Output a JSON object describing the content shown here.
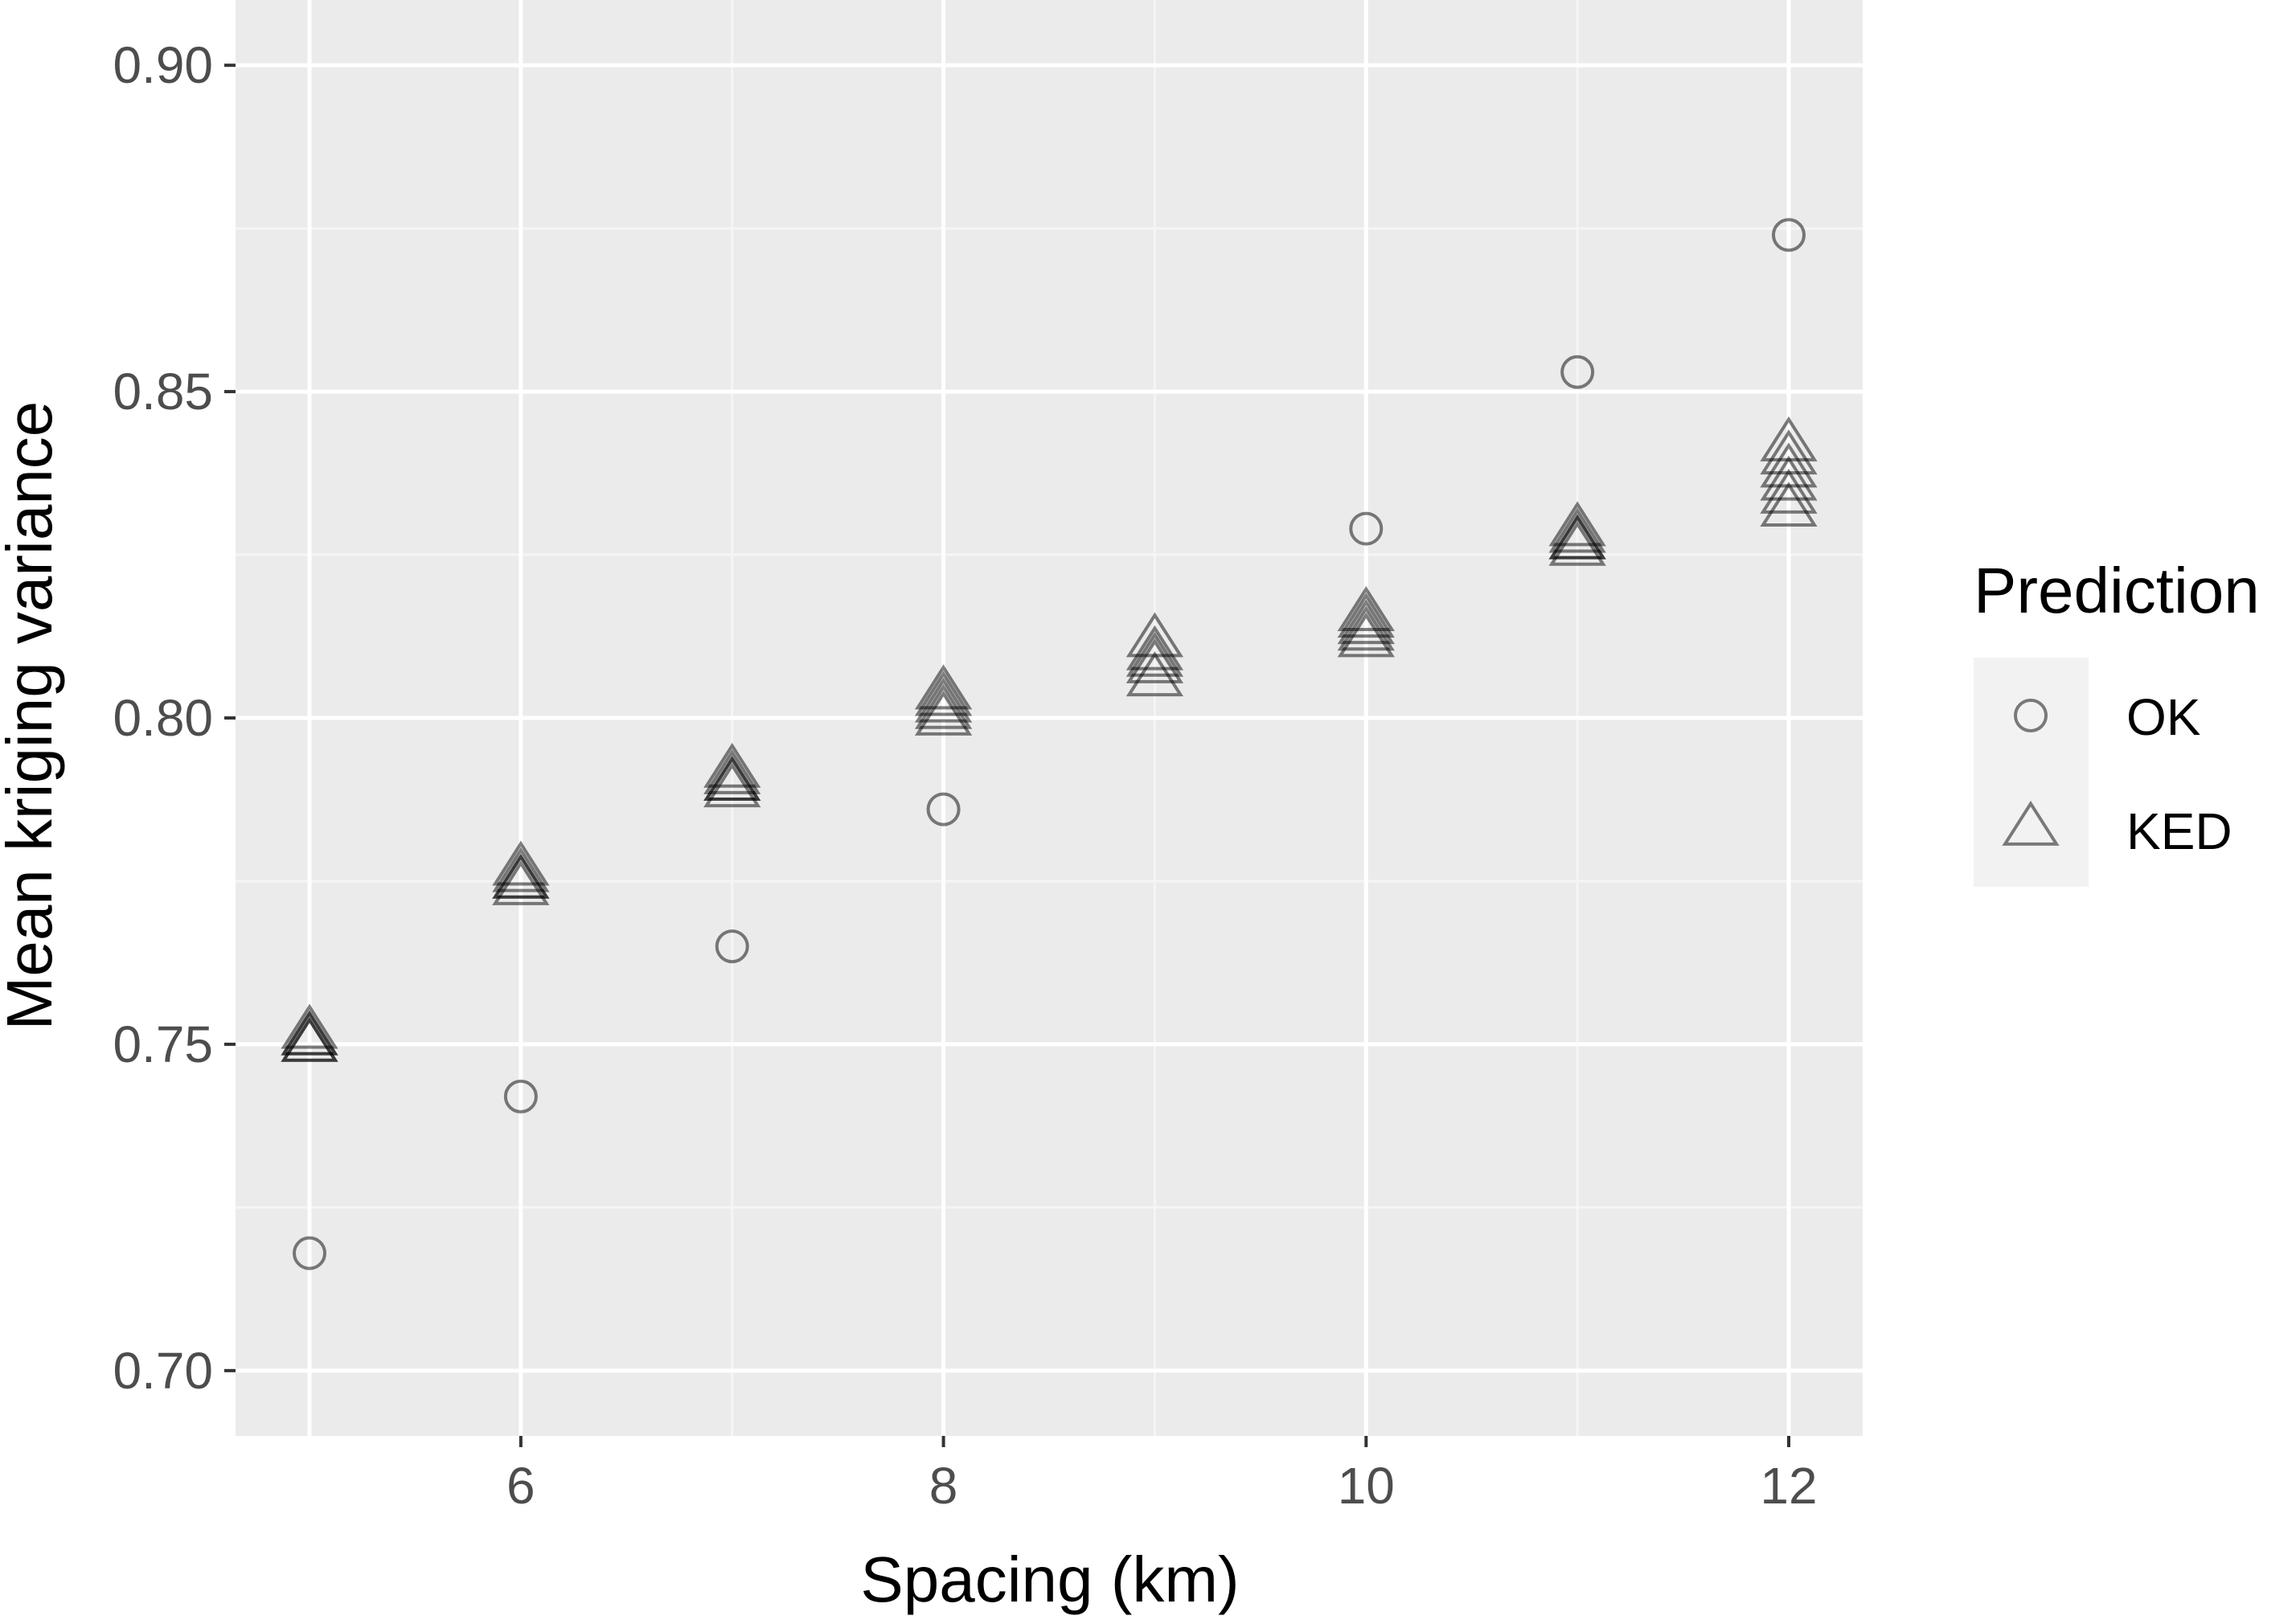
{
  "chart_data": {
    "type": "scatter",
    "xlabel": "Spacing (km)",
    "ylabel": "Mean kriging variance",
    "xlim": [
      4.65,
      12.35
    ],
    "ylim": [
      0.69,
      0.91
    ],
    "x_ticks": [
      6,
      8,
      10,
      12
    ],
    "x_tick_labels": [
      "6",
      "8",
      "10",
      "12"
    ],
    "y_ticks": [
      0.7,
      0.75,
      0.8,
      0.85,
      0.9
    ],
    "y_tick_labels": [
      "0.70",
      "0.75",
      "0.80",
      "0.85",
      "0.90"
    ],
    "grid": true,
    "legend": {
      "title": "Prediction",
      "position": "right",
      "entries": [
        "OK",
        "KED"
      ]
    },
    "series": [
      {
        "name": "OK",
        "marker": "circle",
        "points": [
          {
            "x": 5,
            "y": 0.718
          },
          {
            "x": 6,
            "y": 0.742
          },
          {
            "x": 7,
            "y": 0.765
          },
          {
            "x": 8,
            "y": 0.786
          },
          {
            "x": 10,
            "y": 0.829
          },
          {
            "x": 11,
            "y": 0.853
          },
          {
            "x": 12,
            "y": 0.874
          }
        ]
      },
      {
        "name": "KED",
        "marker": "triangle",
        "points": [
          {
            "x": 5,
            "y": 0.75
          },
          {
            "x": 5,
            "y": 0.751
          },
          {
            "x": 5,
            "y": 0.752
          },
          {
            "x": 5,
            "y": 0.75
          },
          {
            "x": 5,
            "y": 0.751
          },
          {
            "x": 6,
            "y": 0.774
          },
          {
            "x": 6,
            "y": 0.775
          },
          {
            "x": 6,
            "y": 0.776
          },
          {
            "x": 6,
            "y": 0.777
          },
          {
            "x": 6,
            "y": 0.775
          },
          {
            "x": 7,
            "y": 0.789
          },
          {
            "x": 7,
            "y": 0.79
          },
          {
            "x": 7,
            "y": 0.791
          },
          {
            "x": 7,
            "y": 0.792
          },
          {
            "x": 7,
            "y": 0.79
          },
          {
            "x": 8,
            "y": 0.8
          },
          {
            "x": 8,
            "y": 0.801
          },
          {
            "x": 8,
            "y": 0.802
          },
          {
            "x": 8,
            "y": 0.803
          },
          {
            "x": 8,
            "y": 0.804
          },
          {
            "x": 9,
            "y": 0.806
          },
          {
            "x": 9,
            "y": 0.808
          },
          {
            "x": 9,
            "y": 0.809
          },
          {
            "x": 9,
            "y": 0.81
          },
          {
            "x": 9,
            "y": 0.812
          },
          {
            "x": 10,
            "y": 0.812
          },
          {
            "x": 10,
            "y": 0.813
          },
          {
            "x": 10,
            "y": 0.814
          },
          {
            "x": 10,
            "y": 0.815
          },
          {
            "x": 10,
            "y": 0.816
          },
          {
            "x": 11,
            "y": 0.826
          },
          {
            "x": 11,
            "y": 0.827
          },
          {
            "x": 11,
            "y": 0.828
          },
          {
            "x": 11,
            "y": 0.829
          },
          {
            "x": 11,
            "y": 0.827
          },
          {
            "x": 12,
            "y": 0.832
          },
          {
            "x": 12,
            "y": 0.834
          },
          {
            "x": 12,
            "y": 0.836
          },
          {
            "x": 12,
            "y": 0.838
          },
          {
            "x": 12,
            "y": 0.84
          },
          {
            "x": 12,
            "y": 0.842
          }
        ]
      }
    ],
    "colors": {
      "panel_background": "#ebebeb",
      "grid_major": "#ffffff",
      "grid_minor": "#f5f5f5",
      "marker": "#000000",
      "legend_key_background": "#f2f2f2"
    }
  }
}
